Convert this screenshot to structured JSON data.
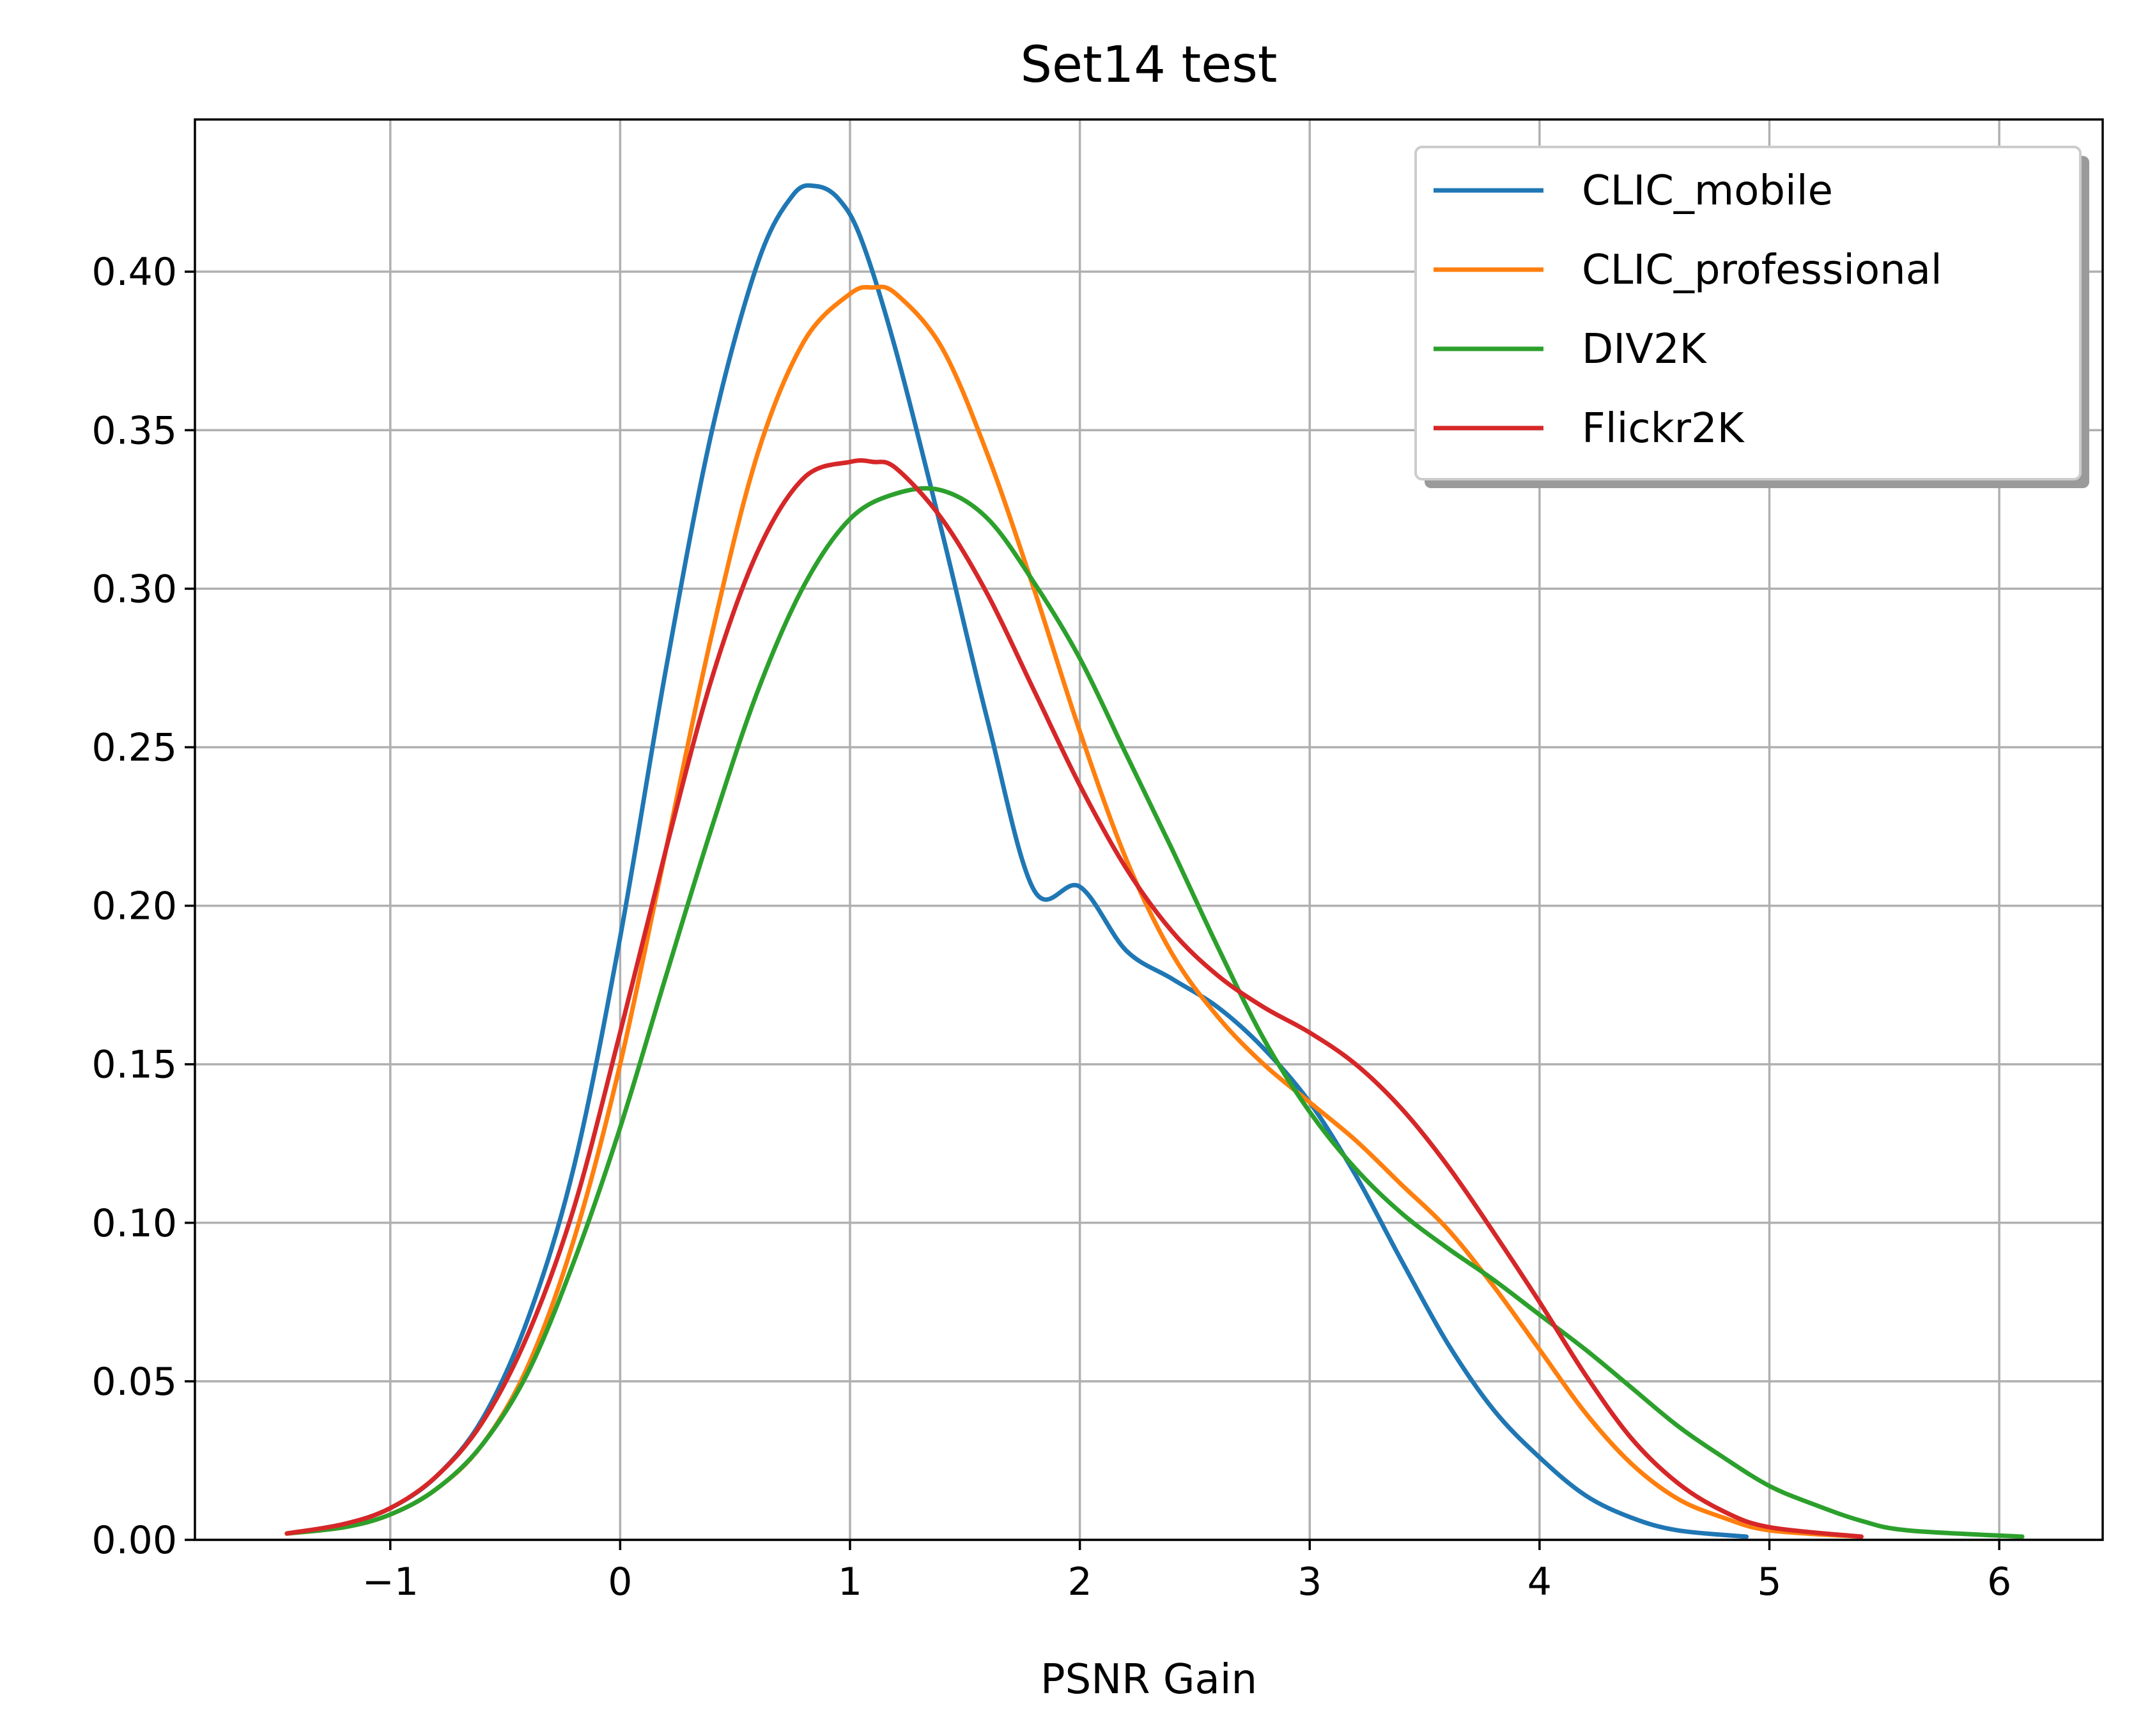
{
  "chart_data": {
    "type": "line",
    "title": "Set14 test",
    "xlabel": "PSNR Gain",
    "ylabel": "",
    "xlim": [
      -1.85,
      6.45
    ],
    "ylim": [
      0,
      0.448
    ],
    "xticks": [
      -1,
      0,
      1,
      2,
      3,
      4,
      5,
      6
    ],
    "xtick_labels": [
      "−1",
      "0",
      "1",
      "2",
      "3",
      "4",
      "5",
      "6"
    ],
    "yticks": [
      0.0,
      0.05,
      0.1,
      0.15,
      0.2,
      0.25,
      0.3,
      0.35,
      0.4
    ],
    "ytick_labels": [
      "0.00",
      "0.05",
      "0.10",
      "0.15",
      "0.20",
      "0.25",
      "0.30",
      "0.35",
      "0.40"
    ],
    "grid": true,
    "legend_position": "top-right",
    "series": [
      {
        "name": "CLIC_mobile",
        "color": "#1f77b4",
        "points": [
          [
            -1.45,
            0.002
          ],
          [
            -1.2,
            0.005
          ],
          [
            -1.0,
            0.01
          ],
          [
            -0.8,
            0.02
          ],
          [
            -0.6,
            0.038
          ],
          [
            -0.4,
            0.07
          ],
          [
            -0.2,
            0.118
          ],
          [
            0.0,
            0.19
          ],
          [
            0.2,
            0.275
          ],
          [
            0.4,
            0.35
          ],
          [
            0.6,
            0.403
          ],
          [
            0.75,
            0.424
          ],
          [
            0.85,
            0.427
          ],
          [
            0.95,
            0.423
          ],
          [
            1.05,
            0.41
          ],
          [
            1.2,
            0.375
          ],
          [
            1.4,
            0.318
          ],
          [
            1.6,
            0.258
          ],
          [
            1.8,
            0.205
          ],
          [
            2.0,
            0.206
          ],
          [
            2.2,
            0.186
          ],
          [
            2.4,
            0.177
          ],
          [
            2.6,
            0.168
          ],
          [
            2.8,
            0.155
          ],
          [
            3.0,
            0.138
          ],
          [
            3.2,
            0.115
          ],
          [
            3.4,
            0.088
          ],
          [
            3.6,
            0.062
          ],
          [
            3.8,
            0.041
          ],
          [
            4.0,
            0.026
          ],
          [
            4.2,
            0.014
          ],
          [
            4.4,
            0.007
          ],
          [
            4.6,
            0.003
          ],
          [
            4.9,
            0.001
          ]
        ]
      },
      {
        "name": "CLIC_professional",
        "color": "#ff7f0e",
        "points": [
          [
            -1.45,
            0.002
          ],
          [
            -1.2,
            0.004
          ],
          [
            -1.0,
            0.008
          ],
          [
            -0.8,
            0.016
          ],
          [
            -0.6,
            0.03
          ],
          [
            -0.4,
            0.055
          ],
          [
            -0.2,
            0.095
          ],
          [
            0.0,
            0.15
          ],
          [
            0.2,
            0.218
          ],
          [
            0.4,
            0.286
          ],
          [
            0.6,
            0.343
          ],
          [
            0.8,
            0.378
          ],
          [
            1.0,
            0.393
          ],
          [
            1.1,
            0.395
          ],
          [
            1.2,
            0.393
          ],
          [
            1.4,
            0.376
          ],
          [
            1.6,
            0.342
          ],
          [
            1.8,
            0.3
          ],
          [
            2.0,
            0.255
          ],
          [
            2.2,
            0.215
          ],
          [
            2.4,
            0.185
          ],
          [
            2.6,
            0.165
          ],
          [
            2.8,
            0.15
          ],
          [
            3.0,
            0.138
          ],
          [
            3.2,
            0.126
          ],
          [
            3.4,
            0.112
          ],
          [
            3.6,
            0.098
          ],
          [
            3.8,
            0.08
          ],
          [
            4.0,
            0.06
          ],
          [
            4.2,
            0.04
          ],
          [
            4.4,
            0.024
          ],
          [
            4.6,
            0.013
          ],
          [
            4.8,
            0.007
          ],
          [
            5.0,
            0.003
          ],
          [
            5.4,
            0.001
          ]
        ]
      },
      {
        "name": "DIV2K",
        "color": "#2ca02c",
        "points": [
          [
            -1.45,
            0.002
          ],
          [
            -1.2,
            0.004
          ],
          [
            -1.0,
            0.008
          ],
          [
            -0.8,
            0.016
          ],
          [
            -0.6,
            0.03
          ],
          [
            -0.4,
            0.053
          ],
          [
            -0.2,
            0.088
          ],
          [
            0.0,
            0.13
          ],
          [
            0.2,
            0.178
          ],
          [
            0.4,
            0.225
          ],
          [
            0.6,
            0.268
          ],
          [
            0.8,
            0.301
          ],
          [
            1.0,
            0.322
          ],
          [
            1.2,
            0.33
          ],
          [
            1.4,
            0.331
          ],
          [
            1.6,
            0.322
          ],
          [
            1.8,
            0.302
          ],
          [
            2.0,
            0.278
          ],
          [
            2.2,
            0.248
          ],
          [
            2.4,
            0.218
          ],
          [
            2.6,
            0.187
          ],
          [
            2.8,
            0.158
          ],
          [
            3.0,
            0.135
          ],
          [
            3.2,
            0.117
          ],
          [
            3.4,
            0.103
          ],
          [
            3.6,
            0.092
          ],
          [
            3.8,
            0.082
          ],
          [
            4.0,
            0.071
          ],
          [
            4.2,
            0.06
          ],
          [
            4.4,
            0.048
          ],
          [
            4.6,
            0.036
          ],
          [
            4.8,
            0.026
          ],
          [
            5.0,
            0.017
          ],
          [
            5.2,
            0.011
          ],
          [
            5.4,
            0.006
          ],
          [
            5.6,
            0.003
          ],
          [
            6.1,
            0.001
          ]
        ]
      },
      {
        "name": "Flickr2K",
        "color": "#d62728",
        "points": [
          [
            -1.45,
            0.002
          ],
          [
            -1.2,
            0.005
          ],
          [
            -1.0,
            0.01
          ],
          [
            -0.8,
            0.02
          ],
          [
            -0.6,
            0.037
          ],
          [
            -0.4,
            0.065
          ],
          [
            -0.2,
            0.105
          ],
          [
            0.0,
            0.16
          ],
          [
            0.2,
            0.218
          ],
          [
            0.4,
            0.272
          ],
          [
            0.6,
            0.312
          ],
          [
            0.8,
            0.335
          ],
          [
            1.0,
            0.34
          ],
          [
            1.1,
            0.34
          ],
          [
            1.2,
            0.338
          ],
          [
            1.4,
            0.322
          ],
          [
            1.6,
            0.298
          ],
          [
            1.8,
            0.268
          ],
          [
            2.0,
            0.238
          ],
          [
            2.2,
            0.212
          ],
          [
            2.4,
            0.192
          ],
          [
            2.6,
            0.178
          ],
          [
            2.8,
            0.168
          ],
          [
            3.0,
            0.16
          ],
          [
            3.2,
            0.15
          ],
          [
            3.4,
            0.136
          ],
          [
            3.6,
            0.118
          ],
          [
            3.8,
            0.097
          ],
          [
            4.0,
            0.075
          ],
          [
            4.2,
            0.052
          ],
          [
            4.4,
            0.032
          ],
          [
            4.6,
            0.018
          ],
          [
            4.8,
            0.009
          ],
          [
            5.0,
            0.004
          ],
          [
            5.4,
            0.001
          ]
        ]
      }
    ]
  }
}
